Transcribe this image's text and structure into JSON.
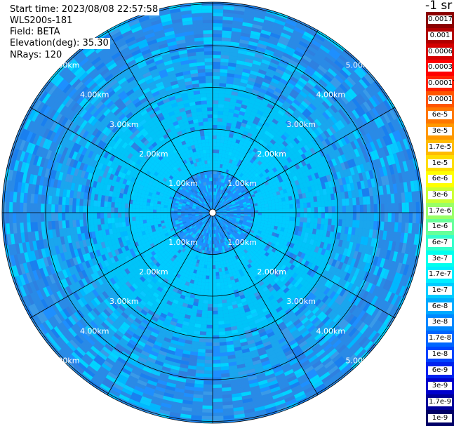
{
  "header": {
    "start_time": "Start time: 2023/08/08 22:57:58",
    "device": "WLS200s-181",
    "field": "Field: BETA",
    "elevation": "Elevation(deg): 35.30",
    "nrays": "NRays: 120"
  },
  "colorbar": {
    "unit_label": "-1 sr",
    "cells": [
      {
        "label": "0.0017",
        "color": "#8b0000"
      },
      {
        "label": "0.001",
        "color": "#b00000"
      },
      {
        "label": "0.0006",
        "color": "#d40000"
      },
      {
        "label": "0.0003",
        "color": "#ff0000"
      },
      {
        "label": "0.00017",
        "color": "#ff2200"
      },
      {
        "label": "0.0001",
        "color": "#ff5500"
      },
      {
        "label": "6e-5",
        "color": "#ff7700"
      },
      {
        "label": "3e-5",
        "color": "#ff9900"
      },
      {
        "label": "1.7e-5",
        "color": "#ffbb00"
      },
      {
        "label": "1e-5",
        "color": "#ffdd00"
      },
      {
        "label": "6e-6",
        "color": "#ffff00"
      },
      {
        "label": "3e-6",
        "color": "#ccff33"
      },
      {
        "label": "1.7e-6",
        "color": "#99ff66"
      },
      {
        "label": "1e-6",
        "color": "#66ff99"
      },
      {
        "label": "6e-7",
        "color": "#33ffcc"
      },
      {
        "label": "3e-7",
        "color": "#00ffee"
      },
      {
        "label": "1.7e-7",
        "color": "#00eeff"
      },
      {
        "label": "1e-7",
        "color": "#00ccff"
      },
      {
        "label": "6e-8",
        "color": "#00aaff"
      },
      {
        "label": "3e-8",
        "color": "#0088ff"
      },
      {
        "label": "1.7e-8",
        "color": "#0066ff"
      },
      {
        "label": "1e-8",
        "color": "#0044ff"
      },
      {
        "label": "6e-9",
        "color": "#0022ee"
      },
      {
        "label": "3e-9",
        "color": "#0000cc"
      },
      {
        "label": "1.7e-9",
        "color": "#000099"
      },
      {
        "label": "1e-9",
        "color": "#000066"
      }
    ]
  },
  "chart_data": {
    "type": "heatmap",
    "projection": "polar (PPI scan)",
    "field": "BETA",
    "range_rings_km": [
      1,
      2,
      3,
      4,
      5
    ],
    "range_ring_labels": [
      "1.00km",
      "2.00km",
      "3.00km",
      "4.00km",
      "5.00km"
    ],
    "radial_lines_count": 12,
    "max_range_km": 5.0,
    "grid": true,
    "dominant_color_by_range": [
      {
        "range_km": [
          0,
          1
        ],
        "color": "#1e90ff"
      },
      {
        "range_km": [
          1,
          2
        ],
        "color": "#00ccff"
      },
      {
        "range_km": [
          2,
          3
        ],
        "color": "#00c4f8"
      },
      {
        "range_km": [
          3,
          4
        ],
        "color": "#1aa6ee"
      },
      {
        "range_km": [
          4,
          5
        ],
        "color": "#2a8ae6"
      }
    ]
  }
}
